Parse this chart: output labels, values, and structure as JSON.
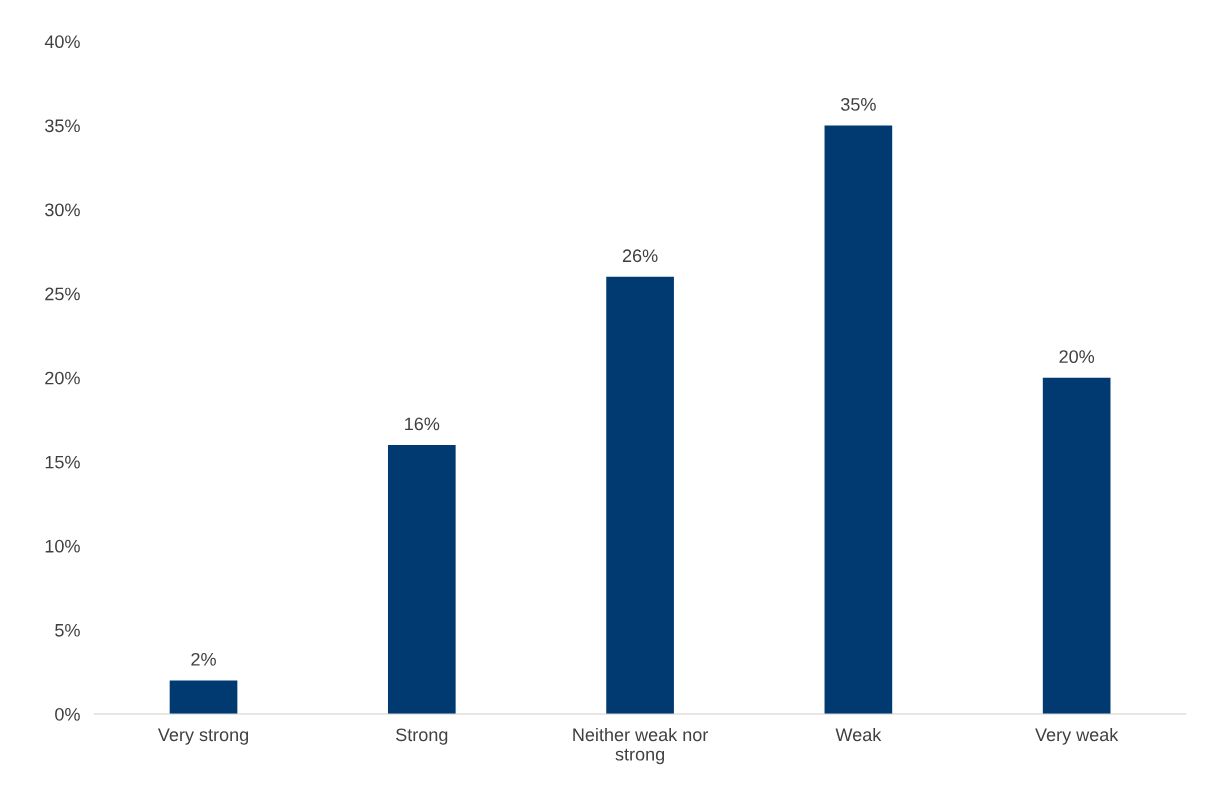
{
  "chart_data": {
    "type": "bar",
    "categories": [
      "Very strong",
      "Strong",
      "Neither weak nor\nstrong",
      "Weak",
      "Very weak"
    ],
    "values": [
      2,
      16,
      26,
      35,
      20
    ],
    "color": "#003a70",
    "value_labels": [
      "2%",
      "16%",
      "26%",
      "35%",
      "20%"
    ],
    "ylim": [
      0,
      40
    ],
    "yticks": [
      {
        "value": 0,
        "label": "0%"
      },
      {
        "value": 5,
        "label": "5%"
      },
      {
        "value": 10,
        "label": "10%"
      },
      {
        "value": 15,
        "label": "15%"
      },
      {
        "value": 20,
        "label": "20%"
      },
      {
        "value": 25,
        "label": "25%"
      },
      {
        "value": 30,
        "label": "30%"
      },
      {
        "value": 35,
        "label": "35%"
      },
      {
        "value": 40,
        "label": "40%"
      }
    ],
    "grid": false,
    "legend": false
  }
}
